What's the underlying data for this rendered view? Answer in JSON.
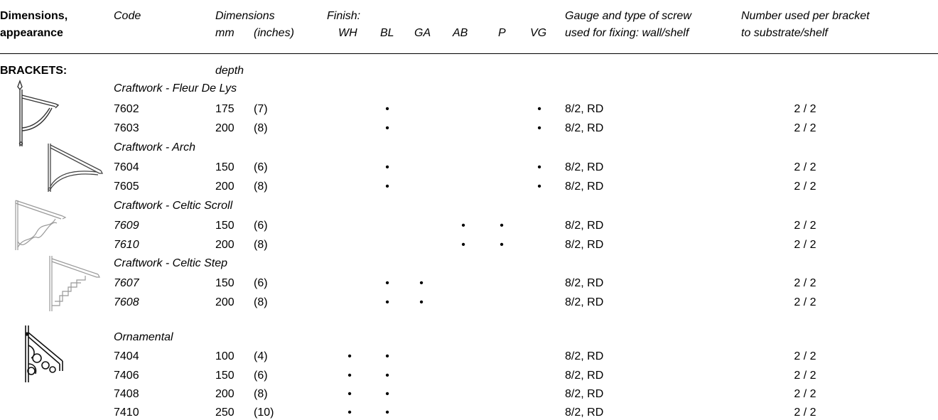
{
  "header": {
    "col1_line1": "Dimensions,",
    "col1_line2": "appearance",
    "code": "Code",
    "dimensions": "Dimensions",
    "mm": "mm",
    "inches": "(inches)",
    "finish": "Finish:",
    "finish_codes": [
      "WH",
      "BL",
      "GA",
      "AB",
      "P",
      "VG"
    ],
    "gauge_line1": "Gauge and type of screw",
    "gauge_line2": "used for fixing: wall/shelf",
    "number_line1": "Number used per bracket",
    "number_line2": "to substrate/shelf"
  },
  "section": {
    "title": "BRACKETS:",
    "depth_label": "depth"
  },
  "groups": [
    {
      "name": "Craftwork - Fleur De Lys",
      "rows": [
        {
          "code": "7602",
          "mm": "175",
          "in": "(7)",
          "finishes": [
            "BL",
            "VG"
          ],
          "gauge": "8/2, RD",
          "number": "2 / 2"
        },
        {
          "code": "7603",
          "mm": "200",
          "in": "(8)",
          "finishes": [
            "BL",
            "VG"
          ],
          "gauge": "8/2, RD",
          "number": "2 / 2"
        }
      ]
    },
    {
      "name": "Craftwork - Arch",
      "rows": [
        {
          "code": "7604",
          "mm": "150",
          "in": "(6)",
          "finishes": [
            "BL",
            "VG"
          ],
          "gauge": "8/2, RD",
          "number": "2 / 2"
        },
        {
          "code": "7605",
          "mm": "200",
          "in": "(8)",
          "finishes": [
            "BL",
            "VG"
          ],
          "gauge": "8/2, RD",
          "number": "2 / 2"
        }
      ]
    },
    {
      "name": "Craftwork - Celtic Scroll",
      "rows": [
        {
          "code": "7609",
          "mm": "150",
          "in": "(6)",
          "finishes": [
            "AB",
            "P"
          ],
          "gauge": "8/2, RD",
          "number": "2 / 2"
        },
        {
          "code": "7610",
          "mm": "200",
          "in": "(8)",
          "finishes": [
            "AB",
            "P"
          ],
          "gauge": "8/2, RD",
          "number": "2 / 2"
        }
      ]
    },
    {
      "name": "Craftwork - Celtic Step",
      "rows": [
        {
          "code": "7607",
          "mm": "150",
          "in": "(6)",
          "finishes": [
            "BL",
            "GA"
          ],
          "gauge": "8/2, RD",
          "number": "2 / 2"
        },
        {
          "code": "7608",
          "mm": "200",
          "in": "(8)",
          "finishes": [
            "BL",
            "GA"
          ],
          "gauge": "8/2, RD",
          "number": "2 / 2"
        }
      ]
    },
    {
      "name": "Ornamental",
      "rows": [
        {
          "code": "7404",
          "mm": "100",
          "in": "(4)",
          "finishes": [
            "WH",
            "BL"
          ],
          "gauge": "8/2, RD",
          "number": "2 / 2"
        },
        {
          "code": "7406",
          "mm": "150",
          "in": "(6)",
          "finishes": [
            "WH",
            "BL"
          ],
          "gauge": "8/2, RD",
          "number": "2 / 2"
        },
        {
          "code": "7408",
          "mm": "200",
          "in": "(8)",
          "finishes": [
            "WH",
            "BL"
          ],
          "gauge": "8/2, RD",
          "number": "2 / 2"
        },
        {
          "code": "7410",
          "mm": "250",
          "in": "(10)",
          "finishes": [
            "WH",
            "BL"
          ],
          "gauge": "8/2, RD",
          "number": "2 / 2"
        }
      ]
    }
  ],
  "dot_glyph": "•"
}
